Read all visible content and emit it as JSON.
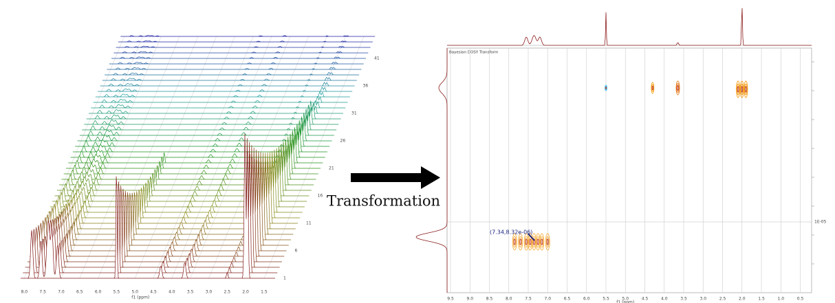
{
  "left_panel": {
    "x_ticks": [
      "8.0",
      "7.5",
      "7.0",
      "6.5",
      "6.0",
      "5.5",
      "5.0",
      "4.5",
      "4.0",
      "3.5",
      "3.0",
      "2.5",
      "2.0",
      "1.5"
    ],
    "x_label": "f1 (ppm)",
    "stack_labels": [
      "1",
      "6",
      "11",
      "16",
      "21",
      "26",
      "31",
      "36",
      "41"
    ]
  },
  "arrow_label": "Transformation",
  "right_panel": {
    "title": "Bayesian DOSY Transform",
    "annotation": "(7.34,8.32e-06)",
    "x_ticks": [
      "9.5",
      "9.0",
      "8.5",
      "8.0",
      "7.5",
      "7.0",
      "6.5",
      "6.0",
      "5.5",
      "5.0",
      "4.5",
      "4.0",
      "3.5",
      "3.0",
      "2.5",
      "2.0",
      "1.5",
      "1.0",
      "0.5"
    ],
    "x_label": "f1 (ppm)",
    "y_ticks": [
      "1E-05"
    ]
  }
}
